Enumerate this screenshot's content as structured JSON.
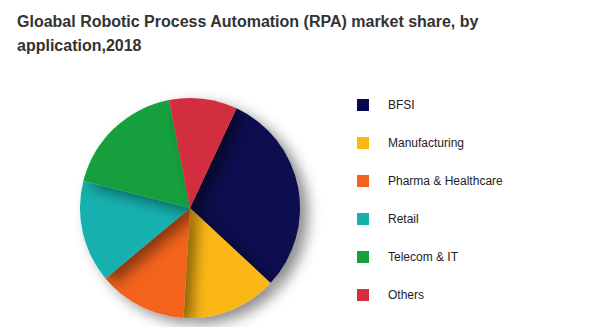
{
  "chart_data": {
    "type": "pie",
    "title": "Gloabal Robotic Process Automation (RPA) market share, by application,2018",
    "categories": [
      "BFSI",
      "Manufacturing",
      "Pharma & Healthcare",
      "Retail",
      "Telecom & IT",
      "Others"
    ],
    "values": [
      30,
      14,
      13,
      15,
      18,
      10
    ],
    "colors": [
      "#07094f",
      "#fbb714",
      "#f3631f",
      "#12b1ae",
      "#17a03d",
      "#d32f3f"
    ],
    "legend": "right",
    "data_labels": false
  }
}
